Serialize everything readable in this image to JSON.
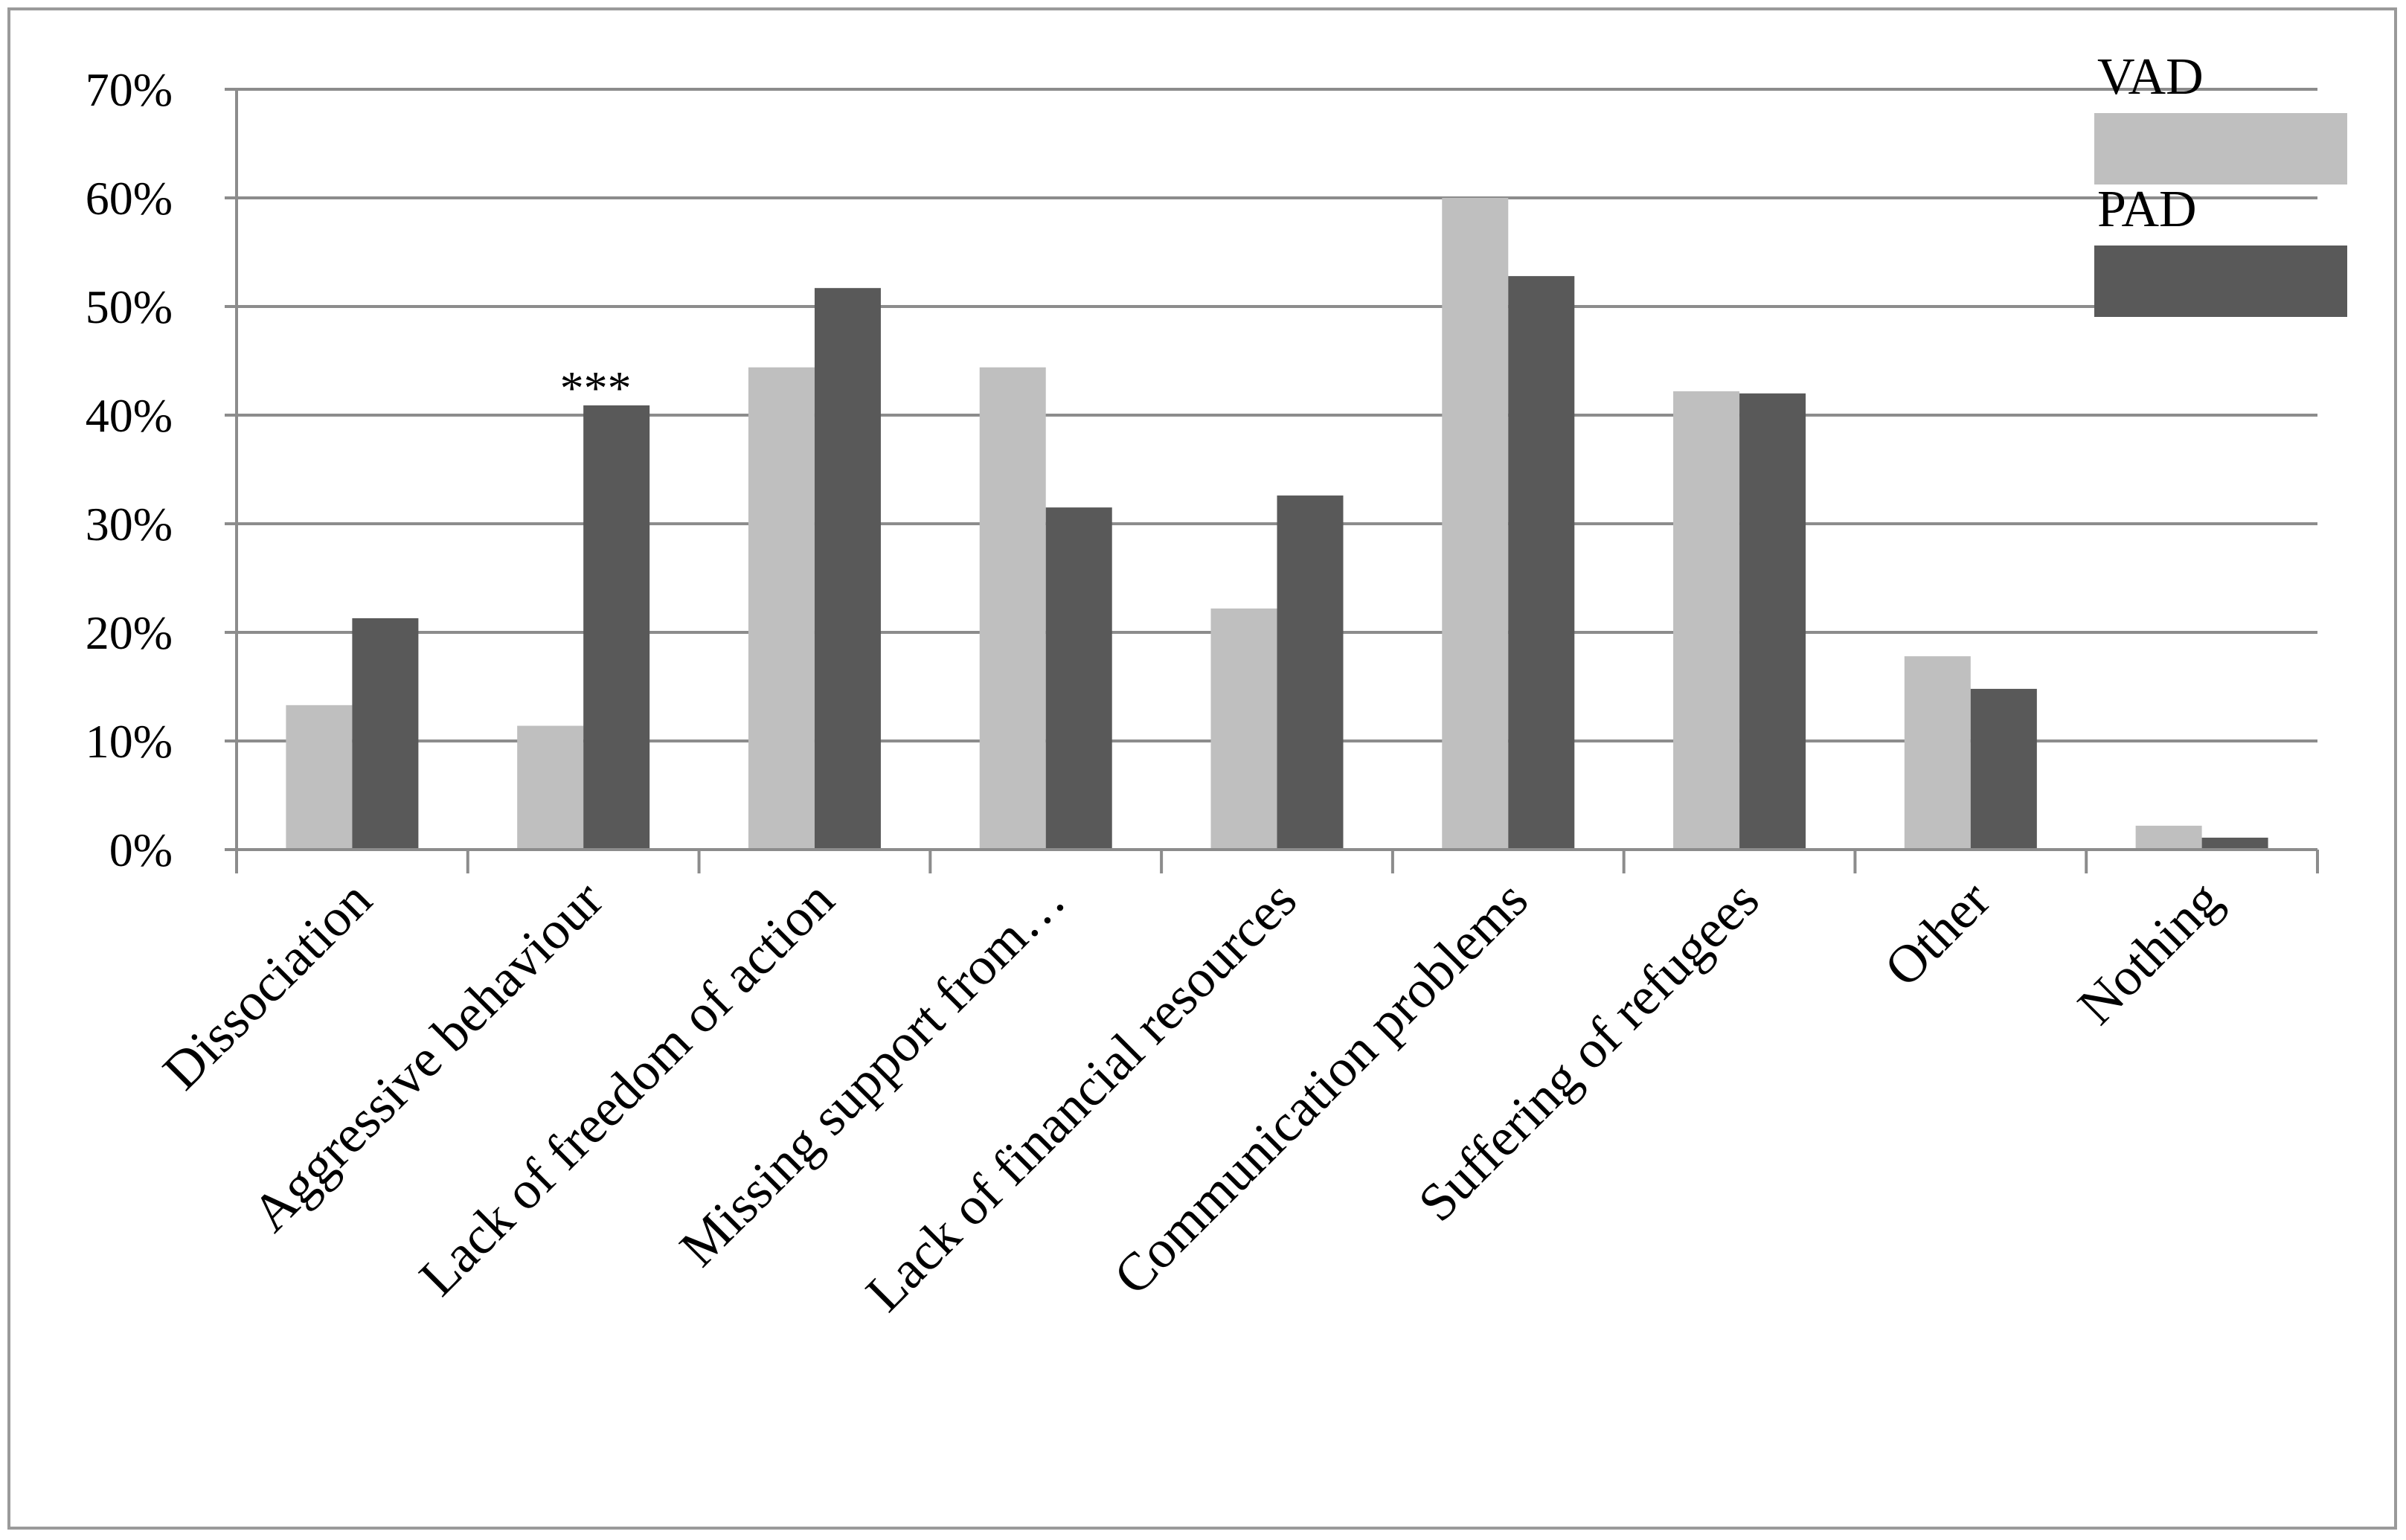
{
  "chart_data": {
    "type": "bar",
    "title": "",
    "xlabel": "",
    "ylabel": "",
    "ylim": [
      0,
      0.7
    ],
    "yticks": [
      0,
      0.1,
      0.2,
      0.3,
      0.4,
      0.5,
      0.6,
      0.7
    ],
    "ytick_labels": [
      "0%",
      "10%",
      "20%",
      "30%",
      "40%",
      "50%",
      "60%",
      "70%"
    ],
    "grid": true,
    "legend_position": "top-right",
    "categories": [
      "Dissociation",
      "Aggressive behaviour",
      "Lack of freedom of action",
      "Missing support from…",
      "Lack of financial resources",
      "Communication problems",
      "Suffering of refugees",
      "Other",
      "Nothing"
    ],
    "series": [
      {
        "name": "VAD",
        "color": "#bfbfbf",
        "values": [
          0.133,
          0.114,
          0.444,
          0.444,
          0.222,
          0.6,
          0.422,
          0.178,
          0.022
        ]
      },
      {
        "name": "PAD",
        "color": "#595959",
        "values": [
          0.213,
          0.409,
          0.517,
          0.315,
          0.326,
          0.528,
          0.42,
          0.148,
          0.011
        ]
      }
    ],
    "annotations": [
      {
        "text": "***",
        "category_index": 1,
        "series_index": 1
      }
    ]
  }
}
